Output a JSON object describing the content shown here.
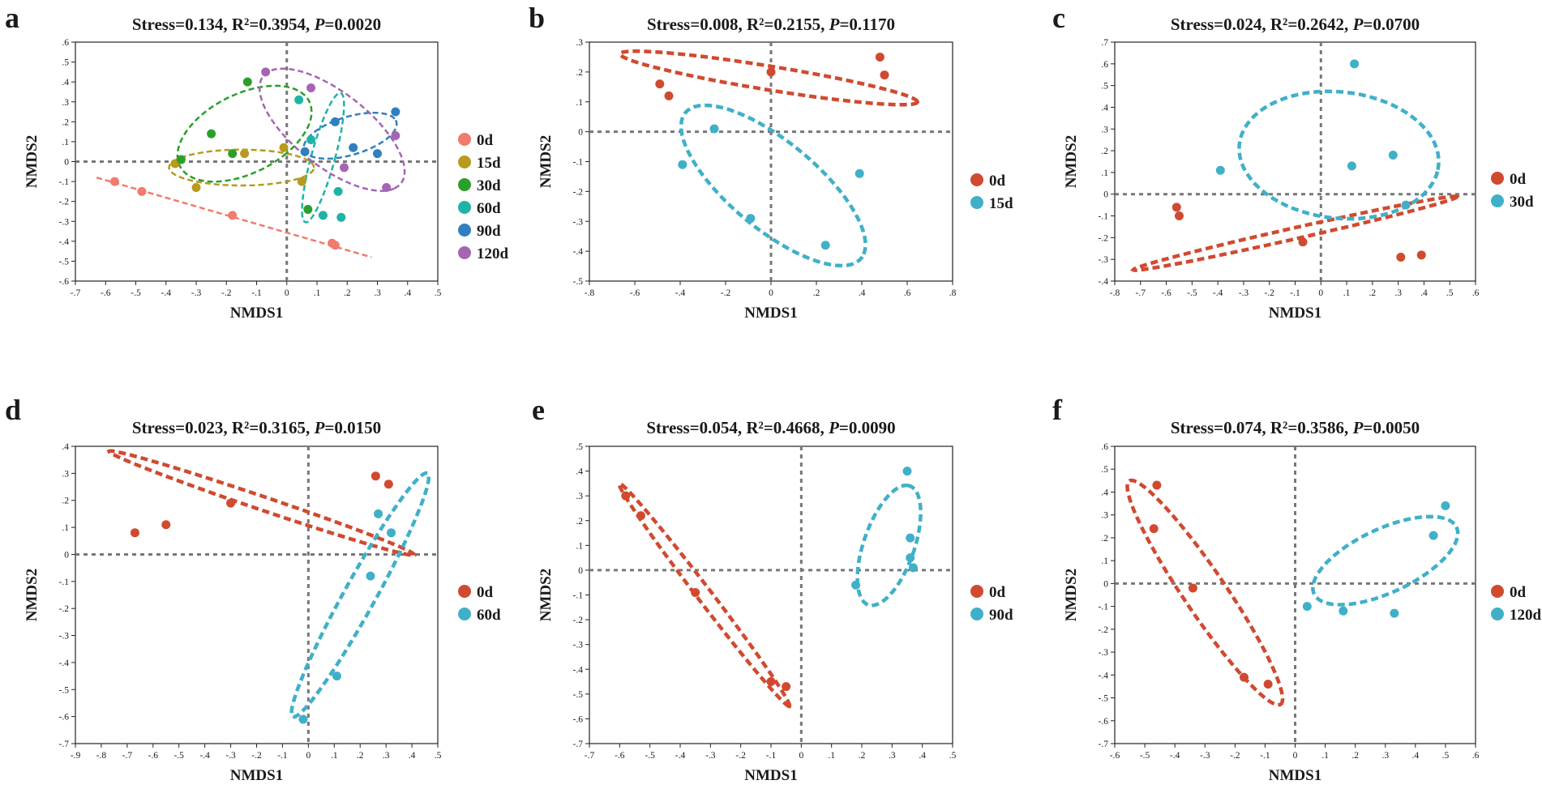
{
  "chart_data": [
    {
      "panel": "a",
      "type": "scatter",
      "title": "Stress=0.134, R²=0.3954, ",
      "p_label": "P",
      "p_value": "=0.0020",
      "xlabel": "NMDS1",
      "ylabel": "NMDS2",
      "xlim": [
        -0.7,
        0.5
      ],
      "ylim": [
        -0.6,
        0.6
      ],
      "xstep": 0.1,
      "ystep": 0.1,
      "series": [
        {
          "name": "0d",
          "color": "#f07b6e",
          "points": [
            [
              -0.57,
              -0.1
            ],
            [
              -0.48,
              -0.15
            ],
            [
              -0.18,
              -0.27
            ],
            [
              0.15,
              -0.41
            ],
            [
              0.16,
              -0.42
            ]
          ],
          "ellipse": {
            "type": "line",
            "from": [
              -0.63,
              -0.08
            ],
            "to": [
              0.28,
              -0.48
            ]
          }
        },
        {
          "name": "15d",
          "color": "#b89a1e",
          "points": [
            [
              -0.37,
              -0.01
            ],
            [
              -0.3,
              -0.13
            ],
            [
              -0.14,
              0.04
            ],
            [
              -0.01,
              0.07
            ],
            [
              0.05,
              -0.1
            ]
          ],
          "ellipse": {
            "cx": -0.15,
            "cy": -0.03,
            "rx": 0.24,
            "ry": 0.09,
            "angle": 0
          }
        },
        {
          "name": "30d",
          "color": "#2aa02a",
          "points": [
            [
              -0.35,
              0.01
            ],
            [
              -0.25,
              0.14
            ],
            [
              -0.18,
              0.04
            ],
            [
              -0.13,
              0.4
            ],
            [
              0.07,
              -0.24
            ]
          ],
          "ellipse": {
            "cx": -0.14,
            "cy": 0.14,
            "rx": 0.17,
            "ry": 0.28,
            "angle": -40
          }
        },
        {
          "name": "60d",
          "color": "#1fb3a6",
          "points": [
            [
              0.04,
              0.31
            ],
            [
              0.08,
              0.11
            ],
            [
              0.12,
              -0.27
            ],
            [
              0.17,
              -0.15
            ],
            [
              0.18,
              -0.28
            ]
          ],
          "ellipse": {
            "cx": 0.12,
            "cy": 0.02,
            "rx": 0.04,
            "ry": 0.33,
            "angle": -10
          }
        },
        {
          "name": "90d",
          "color": "#2f7fc1",
          "points": [
            [
              0.06,
              0.05
            ],
            [
              0.16,
              0.2
            ],
            [
              0.22,
              0.07
            ],
            [
              0.3,
              0.04
            ],
            [
              0.36,
              0.25
            ]
          ],
          "ellipse": {
            "cx": 0.21,
            "cy": 0.13,
            "rx": 0.17,
            "ry": 0.09,
            "angle": 30
          }
        },
        {
          "name": "120d",
          "color": "#a565b5",
          "points": [
            [
              -0.07,
              0.45
            ],
            [
              0.08,
              0.37
            ],
            [
              0.19,
              -0.03
            ],
            [
              0.33,
              -0.13
            ],
            [
              0.36,
              0.13
            ]
          ],
          "ellipse": {
            "cx": 0.15,
            "cy": 0.16,
            "rx": 0.36,
            "ry": 0.15,
            "angle": -55
          }
        }
      ]
    },
    {
      "panel": "b",
      "type": "scatter",
      "title": "Stress=0.008, R²=0.2155, ",
      "p_label": "P",
      "p_value": "=0.1170",
      "xlabel": "NMDS1",
      "ylabel": "NMDS2",
      "xlim": [
        -0.8,
        0.8
      ],
      "ylim": [
        -0.5,
        0.3
      ],
      "xstep": 0.2,
      "ystep": 0.1,
      "series": [
        {
          "name": "0d",
          "color": "#d04a30",
          "points": [
            [
              -0.49,
              0.16
            ],
            [
              -0.45,
              0.12
            ],
            [
              0.0,
              0.2
            ],
            [
              0.48,
              0.25
            ],
            [
              0.5,
              0.19
            ]
          ],
          "ellipse": {
            "cx": -0.01,
            "cy": 0.18,
            "rx": 0.66,
            "ry": 0.04,
            "angle": -7
          }
        },
        {
          "name": "15d",
          "color": "#40b0c8",
          "points": [
            [
              -0.25,
              0.01
            ],
            [
              -0.39,
              -0.11
            ],
            [
              -0.09,
              -0.29
            ],
            [
              0.39,
              -0.14
            ],
            [
              0.24,
              -0.38
            ]
          ],
          "ellipse": {
            "cx": 0.01,
            "cy": -0.18,
            "rx": 0.46,
            "ry": 0.16,
            "angle": -30
          }
        }
      ]
    },
    {
      "panel": "c",
      "type": "scatter",
      "title": "Stress=0.024, R²=0.2642, ",
      "p_label": "P",
      "p_value": "=0.0700",
      "xlabel": "NMDS1",
      "ylabel": "NMDS2",
      "xlim": [
        -0.8,
        0.6
      ],
      "ylim": [
        -0.4,
        0.7
      ],
      "xstep": 0.1,
      "ystep": 0.1,
      "series": [
        {
          "name": "0d",
          "color": "#d04a30",
          "points": [
            [
              -0.56,
              -0.06
            ],
            [
              -0.55,
              -0.1
            ],
            [
              -0.07,
              -0.22
            ],
            [
              0.31,
              -0.29
            ],
            [
              0.39,
              -0.28
            ]
          ],
          "ellipse": {
            "cx": -0.1,
            "cy": -0.18,
            "rx": 0.65,
            "ry": 0.025,
            "angle": 15
          }
        },
        {
          "name": "30d",
          "color": "#40b0c8",
          "points": [
            [
              0.13,
              0.6
            ],
            [
              -0.39,
              0.11
            ],
            [
              0.12,
              0.13
            ],
            [
              0.28,
              0.18
            ],
            [
              0.33,
              -0.05
            ]
          ],
          "ellipse": {
            "cx": 0.07,
            "cy": 0.18,
            "rx": 0.39,
            "ry": 0.29,
            "angle": -10
          }
        }
      ]
    },
    {
      "panel": "d",
      "type": "scatter",
      "title": "Stress=0.023, R²=0.3165, ",
      "p_label": "P",
      "p_value": "=0.0150",
      "xlabel": "NMDS1",
      "ylabel": "NMDS2",
      "xlim": [
        -0.9,
        0.5
      ],
      "ylim": [
        -0.7,
        0.4
      ],
      "xstep": 0.1,
      "ystep": 0.1,
      "series": [
        {
          "name": "0d",
          "color": "#d04a30",
          "points": [
            [
              -0.67,
              0.08
            ],
            [
              -0.55,
              0.11
            ],
            [
              -0.3,
              0.19
            ],
            [
              0.26,
              0.29
            ],
            [
              0.31,
              0.26
            ]
          ],
          "ellipse": {
            "cx": -0.18,
            "cy": 0.19,
            "rx": 0.62,
            "ry": 0.025,
            "angle": -18
          }
        },
        {
          "name": "60d",
          "color": "#40b0c8",
          "points": [
            [
              0.27,
              0.15
            ],
            [
              0.32,
              0.08
            ],
            [
              0.24,
              -0.08
            ],
            [
              0.11,
              -0.45
            ],
            [
              -0.02,
              -0.61
            ]
          ],
          "ellipse": {
            "cx": 0.2,
            "cy": -0.15,
            "rx": 0.52,
            "ry": 0.06,
            "angle": 60
          }
        }
      ]
    },
    {
      "panel": "e",
      "type": "scatter",
      "title": "Stress=0.054, R²=0.4668, ",
      "p_label": "P",
      "p_value": "=0.0090",
      "xlabel": "NMDS1",
      "ylabel": "NMDS2",
      "xlim": [
        -0.7,
        0.5
      ],
      "ylim": [
        -0.7,
        0.5
      ],
      "xstep": 0.1,
      "ystep": 0.1,
      "series": [
        {
          "name": "0d",
          "color": "#d04a30",
          "points": [
            [
              -0.58,
              0.3
            ],
            [
              -0.53,
              0.22
            ],
            [
              -0.35,
              -0.09
            ],
            [
              -0.1,
              -0.45
            ],
            [
              -0.05,
              -0.47
            ]
          ],
          "ellipse": {
            "cx": -0.32,
            "cy": -0.1,
            "rx": 0.53,
            "ry": 0.025,
            "angle": -58
          }
        },
        {
          "name": "90d",
          "color": "#40b0c8",
          "points": [
            [
              0.35,
              0.4
            ],
            [
              0.36,
              0.13
            ],
            [
              0.36,
              0.05
            ],
            [
              0.37,
              0.01
            ],
            [
              0.18,
              -0.06
            ]
          ],
          "ellipse": {
            "cx": 0.29,
            "cy": 0.1,
            "rx": 0.25,
            "ry": 0.085,
            "angle": 75
          }
        }
      ]
    },
    {
      "panel": "f",
      "type": "scatter",
      "title": "Stress=0.074, R²=0.3586, ",
      "p_label": "P",
      "p_value": "=0.0050",
      "xlabel": "NMDS1",
      "ylabel": "NMDS2",
      "xlim": [
        -0.6,
        0.6
      ],
      "ylim": [
        -0.7,
        0.6
      ],
      "xstep": 0.1,
      "ystep": 0.1,
      "series": [
        {
          "name": "0d",
          "color": "#d04a30",
          "points": [
            [
              -0.46,
              0.43
            ],
            [
              -0.47,
              0.24
            ],
            [
              -0.34,
              -0.02
            ],
            [
              -0.17,
              -0.41
            ],
            [
              -0.09,
              -0.44
            ]
          ],
          "ellipse": {
            "cx": -0.3,
            "cy": -0.04,
            "rx": 0.55,
            "ry": 0.075,
            "angle": -63
          }
        },
        {
          "name": "120d",
          "color": "#40b0c8",
          "points": [
            [
              0.5,
              0.34
            ],
            [
              0.46,
              0.21
            ],
            [
              0.04,
              -0.1
            ],
            [
              0.16,
              -0.12
            ],
            [
              0.33,
              -0.13
            ]
          ],
          "ellipse": {
            "cx": 0.3,
            "cy": 0.1,
            "rx": 0.28,
            "ry": 0.13,
            "angle": 35
          }
        }
      ]
    }
  ]
}
